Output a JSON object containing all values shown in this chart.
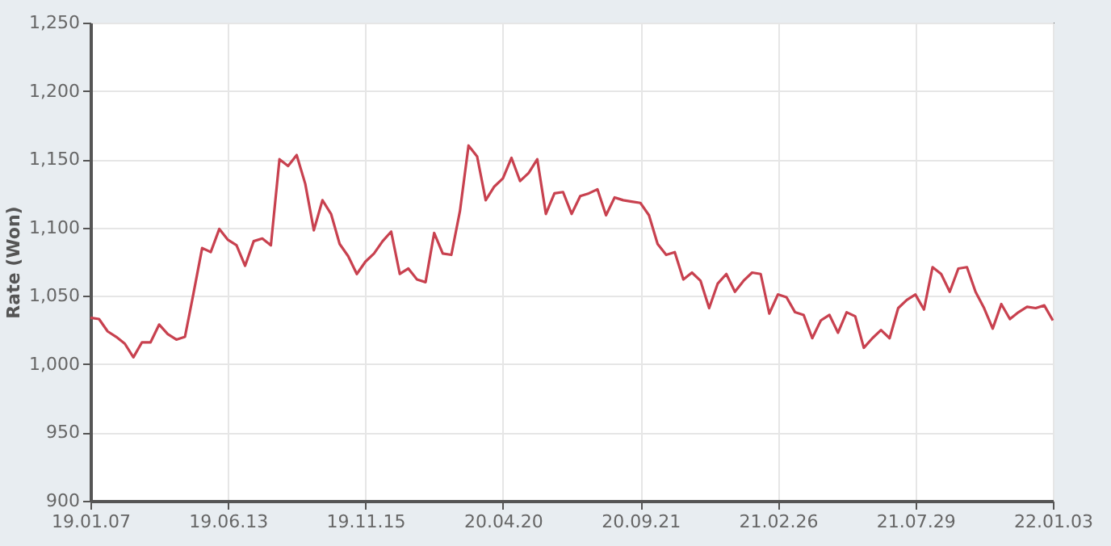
{
  "chart_data": {
    "type": "line",
    "ylabel": "Rate (Won)",
    "categories": [
      "19.01.07",
      null,
      null,
      null,
      null,
      null,
      null,
      null,
      null,
      null,
      null,
      null,
      null,
      null,
      null,
      null,
      "19.06.13",
      null,
      null,
      null,
      null,
      null,
      null,
      null,
      null,
      null,
      null,
      null,
      null,
      null,
      null,
      null,
      "19.11.15",
      null,
      null,
      null,
      null,
      null,
      null,
      null,
      null,
      null,
      null,
      null,
      null,
      null,
      null,
      null,
      "20.04.20",
      null,
      null,
      null,
      null,
      null,
      null,
      null,
      null,
      null,
      null,
      null,
      null,
      null,
      null,
      null,
      "20.09.21",
      null,
      null,
      null,
      null,
      null,
      null,
      null,
      null,
      null,
      null,
      null,
      null,
      null,
      null,
      null,
      "21.02.26",
      null,
      null,
      null,
      null,
      null,
      null,
      null,
      null,
      null,
      null,
      null,
      null,
      null,
      null,
      null,
      "21.07.29",
      null,
      null,
      null,
      null,
      null,
      null,
      null,
      null,
      null,
      null,
      null,
      null,
      null,
      null,
      null,
      "22.01.03"
    ],
    "series": [
      {
        "color": "#c8414f",
        "values": [
          1034,
          1033,
          1024,
          1020,
          1015,
          1005,
          1016,
          1016,
          1029,
          1022,
          1018,
          1020,
          1052,
          1085,
          1082,
          1099,
          1091,
          1087,
          1072,
          1090,
          1092,
          1087,
          1150,
          1145,
          1153,
          1132,
          1098,
          1120,
          1110,
          1088,
          1079,
          1066,
          1075,
          1081,
          1090,
          1097,
          1066,
          1070,
          1062,
          1060,
          1096,
          1081,
          1080,
          1112,
          1160,
          1152,
          1120,
          1130,
          1136,
          1151,
          1134,
          1140,
          1150,
          1110,
          1125,
          1126,
          1110,
          1123,
          1125,
          1128,
          1109,
          1122,
          1120,
          1119,
          1118,
          1109,
          1088,
          1080,
          1082,
          1062,
          1067,
          1061,
          1041,
          1059,
          1066,
          1053,
          1061,
          1067,
          1066,
          1037,
          1051,
          1049,
          1038,
          1036,
          1019,
          1032,
          1036,
          1023,
          1038,
          1035,
          1012,
          1019,
          1025,
          1019,
          1041,
          1047,
          1051,
          1040,
          1071,
          1066,
          1053,
          1070,
          1071,
          1053,
          1041,
          1026,
          1044,
          1033,
          1038,
          1042,
          1041,
          1043,
          1032
        ]
      }
    ],
    "ylim": [
      900,
      1250
    ],
    "yticks": [
      900,
      950,
      {
        "value": 1000,
        "label": "1,000"
      },
      {
        "value": 1050,
        "label": "1,050"
      },
      {
        "value": 1100,
        "label": "1,100"
      },
      {
        "value": 1150,
        "label": "1,150"
      },
      {
        "value": 1200,
        "label": "1,200"
      },
      {
        "value": 1250,
        "label": "1,250"
      }
    ],
    "grid": true,
    "marker": "none",
    "line_style": "solid"
  }
}
